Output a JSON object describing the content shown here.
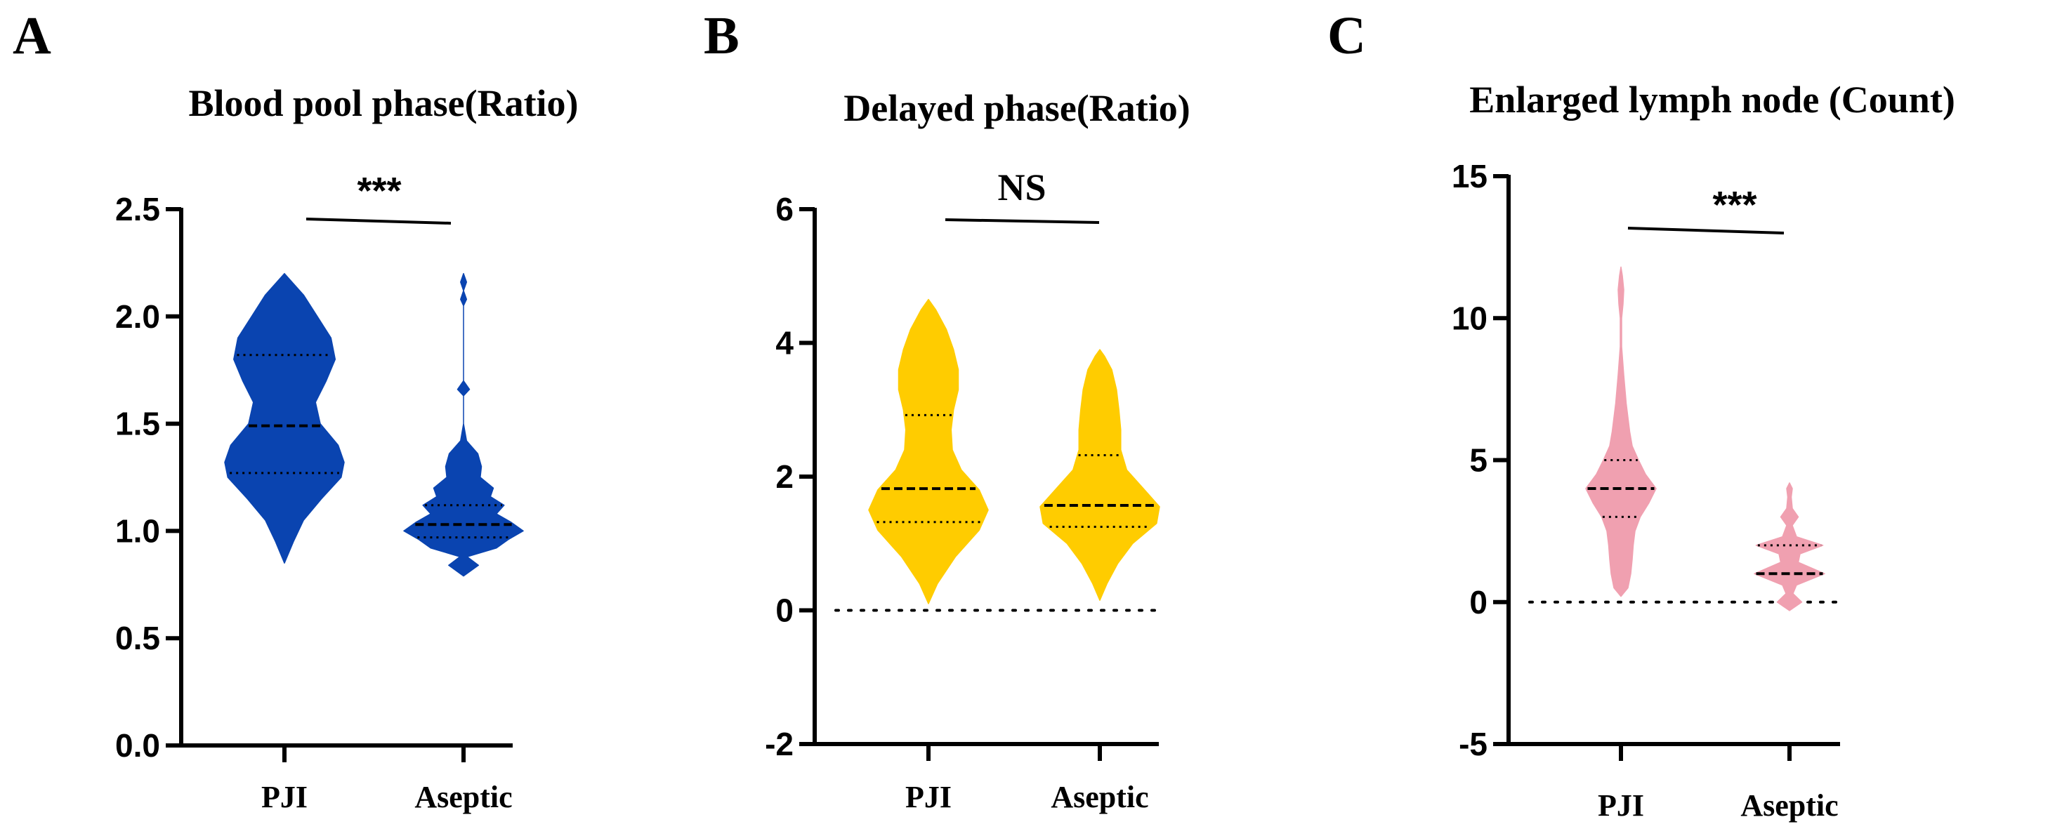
{
  "chart_data": [
    {
      "panel": "A",
      "type": "violin",
      "title": "Blood pool phase(Ratio)",
      "categories": [
        "PJI",
        "Aseptic"
      ],
      "ylim": [
        0,
        2.5
      ],
      "yticks": [
        0.0,
        0.5,
        1.0,
        1.5,
        2.0,
        2.5
      ],
      "ytick_labels": [
        "0.0",
        "0.5",
        "1.0",
        "1.5",
        "2.0",
        "2.5"
      ],
      "color": "#0a44b0",
      "significance": "***",
      "zero_line": false,
      "series": [
        {
          "name": "PJI",
          "min": 0.85,
          "max": 2.2,
          "median": 1.49,
          "q1": 1.27,
          "q3": 1.82,
          "profile": [
            [
              0.85,
              0
            ],
            [
              0.95,
              0.15
            ],
            [
              1.05,
              0.32
            ],
            [
              1.15,
              0.62
            ],
            [
              1.25,
              0.95
            ],
            [
              1.32,
              1.0
            ],
            [
              1.4,
              0.9
            ],
            [
              1.5,
              0.6
            ],
            [
              1.6,
              0.52
            ],
            [
              1.7,
              0.7
            ],
            [
              1.8,
              0.85
            ],
            [
              1.9,
              0.78
            ],
            [
              2.0,
              0.55
            ],
            [
              2.1,
              0.32
            ],
            [
              2.2,
              0
            ]
          ]
        },
        {
          "name": "Aseptic",
          "min": 0.79,
          "max": 2.2,
          "median": 1.03,
          "q1": 0.97,
          "q3": 1.12,
          "profile": [
            [
              0.79,
              0
            ],
            [
              0.84,
              0.25
            ],
            [
              0.88,
              0.06
            ],
            [
              0.92,
              0.55
            ],
            [
              0.96,
              0.75
            ],
            [
              1.0,
              1.0
            ],
            [
              1.04,
              0.8
            ],
            [
              1.08,
              0.55
            ],
            [
              1.12,
              0.68
            ],
            [
              1.16,
              0.45
            ],
            [
              1.2,
              0.5
            ],
            [
              1.25,
              0.28
            ],
            [
              1.3,
              0.3
            ],
            [
              1.36,
              0.24
            ],
            [
              1.42,
              0.05
            ],
            [
              1.5,
              0.0
            ],
            [
              1.6,
              0.0
            ],
            [
              1.63,
              0.0
            ],
            [
              1.66,
              0.1
            ],
            [
              1.7,
              0.0
            ],
            [
              2.05,
              0.0
            ],
            [
              2.08,
              0.05
            ],
            [
              2.12,
              0.0
            ],
            [
              2.16,
              0.05
            ],
            [
              2.2,
              0
            ]
          ]
        }
      ]
    },
    {
      "panel": "B",
      "type": "violin",
      "title": "Delayed phase(Ratio)",
      "categories": [
        "PJI",
        "Aseptic"
      ],
      "ylim": [
        -2,
        6
      ],
      "yticks": [
        -2,
        0,
        2,
        4,
        6
      ],
      "ytick_labels": [
        "-2",
        "0",
        "2",
        "4",
        "6"
      ],
      "color": "#ffcc00",
      "significance": "NS",
      "zero_line": true,
      "series": [
        {
          "name": "PJI",
          "min": 0.1,
          "max": 4.65,
          "median": 1.82,
          "q1": 1.32,
          "q3": 2.92,
          "profile": [
            [
              0.1,
              0
            ],
            [
              0.4,
              0.15
            ],
            [
              0.8,
              0.45
            ],
            [
              1.2,
              0.85
            ],
            [
              1.5,
              1.0
            ],
            [
              1.8,
              0.85
            ],
            [
              2.1,
              0.55
            ],
            [
              2.4,
              0.4
            ],
            [
              2.7,
              0.38
            ],
            [
              3.0,
              0.42
            ],
            [
              3.3,
              0.5
            ],
            [
              3.6,
              0.5
            ],
            [
              3.9,
              0.42
            ],
            [
              4.2,
              0.3
            ],
            [
              4.5,
              0.12
            ],
            [
              4.65,
              0
            ]
          ]
        },
        {
          "name": "Aseptic",
          "min": 0.15,
          "max": 3.9,
          "median": 1.57,
          "q1": 1.25,
          "q3": 2.32,
          "profile": [
            [
              0.15,
              0
            ],
            [
              0.4,
              0.12
            ],
            [
              0.7,
              0.3
            ],
            [
              1.0,
              0.55
            ],
            [
              1.3,
              0.95
            ],
            [
              1.55,
              1.0
            ],
            [
              1.8,
              0.75
            ],
            [
              2.1,
              0.45
            ],
            [
              2.4,
              0.35
            ],
            [
              2.7,
              0.35
            ],
            [
              3.0,
              0.32
            ],
            [
              3.3,
              0.28
            ],
            [
              3.6,
              0.2
            ],
            [
              3.8,
              0.08
            ],
            [
              3.9,
              0
            ]
          ]
        }
      ]
    },
    {
      "panel": "C",
      "type": "violin",
      "title": "Enlarged lymph node (Count)",
      "categories": [
        "PJI",
        "Aseptic"
      ],
      "ylim": [
        -5,
        15
      ],
      "yticks": [
        -5,
        0,
        5,
        10,
        15
      ],
      "ytick_labels": [
        "-5",
        "0",
        "5",
        "10",
        "15"
      ],
      "color": "#f0a0b0",
      "significance": "***",
      "zero_line": true,
      "series": [
        {
          "name": "PJI",
          "min": 0.2,
          "max": 11.8,
          "median": 4,
          "q1": 3,
          "q3": 5,
          "profile": [
            [
              0.2,
              0
            ],
            [
              0.5,
              0.2
            ],
            [
              1.0,
              0.28
            ],
            [
              1.5,
              0.32
            ],
            [
              2.0,
              0.35
            ],
            [
              2.5,
              0.4
            ],
            [
              3.0,
              0.55
            ],
            [
              3.5,
              0.8
            ],
            [
              4.0,
              1.0
            ],
            [
              4.5,
              0.7
            ],
            [
              5.0,
              0.5
            ],
            [
              5.5,
              0.32
            ],
            [
              6.0,
              0.25
            ],
            [
              6.5,
              0.2
            ],
            [
              7.0,
              0.15
            ],
            [
              8.0,
              0.08
            ],
            [
              9.0,
              0.02
            ],
            [
              10.0,
              0.02
            ],
            [
              10.5,
              0.06
            ],
            [
              11.0,
              0.08
            ],
            [
              11.5,
              0.04
            ],
            [
              11.8,
              0
            ]
          ]
        },
        {
          "name": "Aseptic",
          "min": -0.3,
          "max": 4.2,
          "median": 1,
          "q1": 1,
          "q3": 2,
          "profile": [
            [
              -0.3,
              0
            ],
            [
              0.0,
              0.35
            ],
            [
              0.3,
              0.1
            ],
            [
              0.6,
              0.2
            ],
            [
              1.0,
              1.0
            ],
            [
              1.4,
              0.25
            ],
            [
              1.7,
              0.3
            ],
            [
              2.0,
              0.95
            ],
            [
              2.3,
              0.2
            ],
            [
              2.7,
              0.08
            ],
            [
              3.0,
              0.25
            ],
            [
              3.3,
              0.08
            ],
            [
              3.7,
              0.05
            ],
            [
              4.0,
              0.08
            ],
            [
              4.2,
              0
            ]
          ]
        }
      ]
    }
  ]
}
